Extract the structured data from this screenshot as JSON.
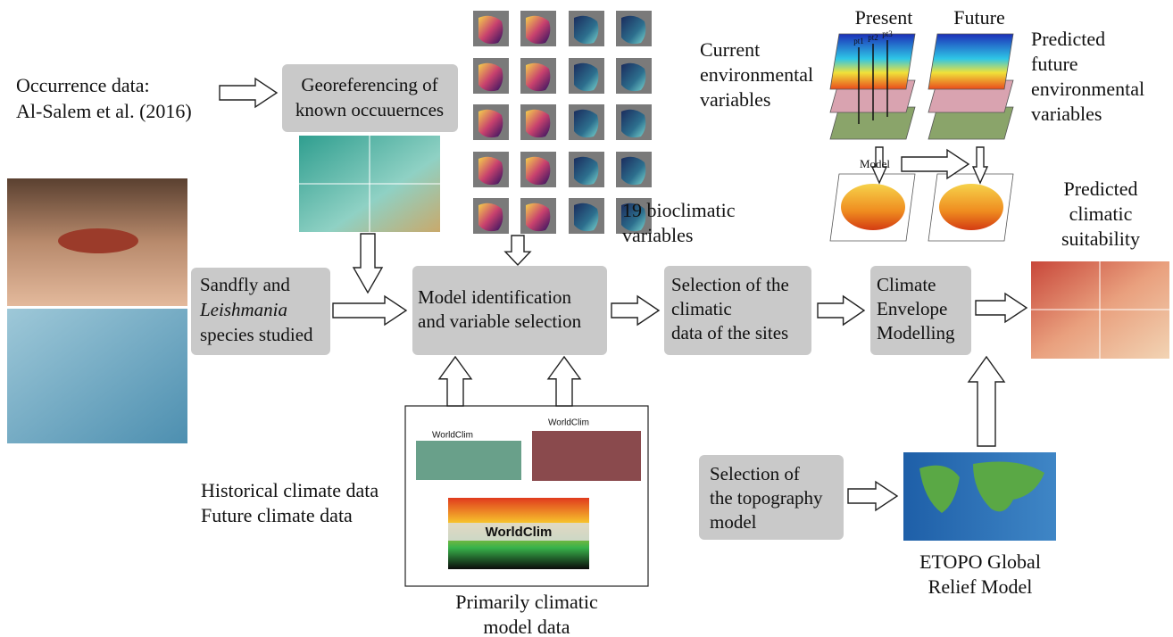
{
  "occurrence": {
    "lines": [
      "Occurrence data:",
      "Al-Salem et al. (2016)"
    ]
  },
  "georeferencing": {
    "lines": [
      "Georeferencing of",
      "known occuuernces"
    ]
  },
  "bioclimatic": {
    "lines": [
      "19 bioclimatic",
      "variables"
    ]
  },
  "present": "Present",
  "future": "Future",
  "current_env": {
    "lines": [
      "Current",
      "environmental",
      "variables"
    ]
  },
  "future_env": {
    "lines": [
      "Predicted",
      "future",
      "environmental",
      "variables"
    ]
  },
  "australia_labels": [
    "pt1",
    "pt2",
    "pt3"
  ],
  "model_label": "Model",
  "predicted_suitability": {
    "lines": [
      "Predicted",
      "climatic",
      "suitability"
    ]
  },
  "sandfly": {
    "lines": [
      "Sandfly and",
      "Leishmania",
      "species studied"
    ]
  },
  "model_identification": {
    "lines": [
      "Model identification",
      "and variable selection"
    ]
  },
  "site_selection": {
    "lines": [
      "Selection of the",
      "climatic",
      "data of the sites"
    ]
  },
  "climate_envelope": {
    "lines": [
      "Climate",
      "Envelope",
      "Modelling"
    ]
  },
  "climate_data": {
    "lines": [
      "Historical climate data",
      "Future climate data"
    ]
  },
  "worldclim": {
    "logos": [
      "WorldClim",
      "WorldClim",
      "WorldClim"
    ]
  },
  "primary_data": {
    "lines": [
      "Primarily climatic",
      "model data"
    ]
  },
  "topography": {
    "lines": [
      "Selection of",
      "the topography",
      "model"
    ]
  },
  "etopo": {
    "lines": [
      "ETOPO Global",
      "Relief Model"
    ]
  }
}
